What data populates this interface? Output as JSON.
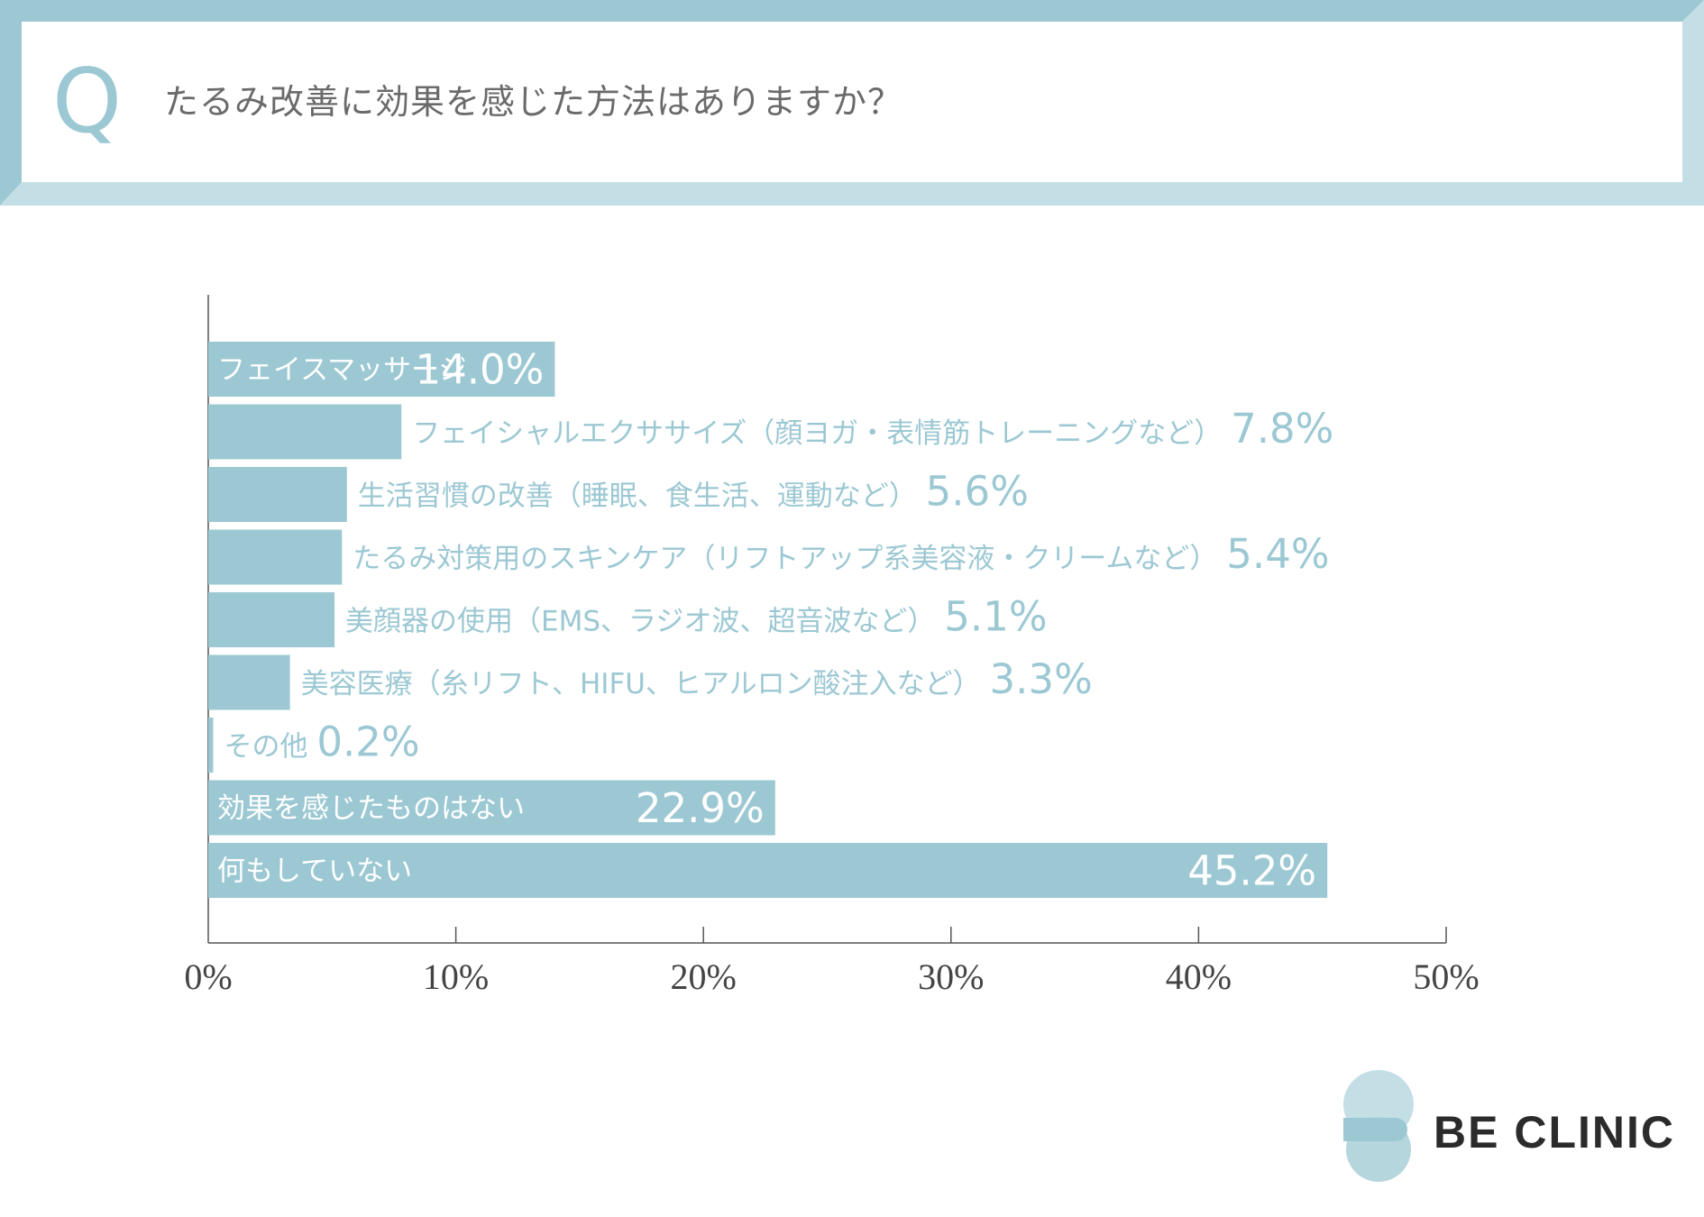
{
  "question": {
    "marker": "Q",
    "text": "たるみ改善に効果を感じた方法はありますか？"
  },
  "chart_data": {
    "type": "bar",
    "orientation": "horizontal",
    "title": "たるみ改善に効果を感じた方法はありますか？",
    "xlabel": "",
    "ylabel": "",
    "xlim": [
      0,
      50
    ],
    "xticks": [
      0,
      10,
      20,
      30,
      40,
      50
    ],
    "tick_labels": [
      "0%",
      "10%",
      "20%",
      "30%",
      "40%",
      "50%"
    ],
    "grid": false,
    "categories": [
      "フェイスマッサージ",
      "フェイシャルエクササイズ（顔ヨガ・表情筋トレーニングなど）",
      "生活習慣の改善（睡眠、食生活、運動など）",
      "たるみ対策用のスキンケア（リフトアップ系美容液・クリームなど）",
      "美顔器の使用（EMS、ラジオ波、超音波など）",
      "美容医療（糸リフト、HIFU、ヒアルロン酸注入など）",
      "その他",
      "効果を感じたものはない",
      "何もしていない"
    ],
    "values": [
      14.0,
      7.8,
      5.6,
      5.4,
      5.1,
      3.3,
      0.2,
      22.9,
      45.2
    ],
    "value_labels": [
      "14.0%",
      "7.8%",
      "5.6%",
      "5.4%",
      "5.1%",
      "3.3%",
      "0.2%",
      "22.9%",
      "45.2%"
    ],
    "label_inside": [
      true,
      false,
      false,
      false,
      false,
      false,
      false,
      true,
      true
    ],
    "colors": {
      "bar": "#9cc8d3",
      "label_outside": "#9cc8d3",
      "label_inside": "#ffffff",
      "axis": "#555555",
      "tick_text": "#444444"
    }
  },
  "brand": {
    "name": "BE CLINIC",
    "logo_icon": "be-clinic-logo-icon"
  },
  "colors": {
    "frame_dark": "#9cc8d3",
    "frame_light": "#c4dee5",
    "accent": "#9cc8d3",
    "question_text": "#6a6a6a"
  }
}
